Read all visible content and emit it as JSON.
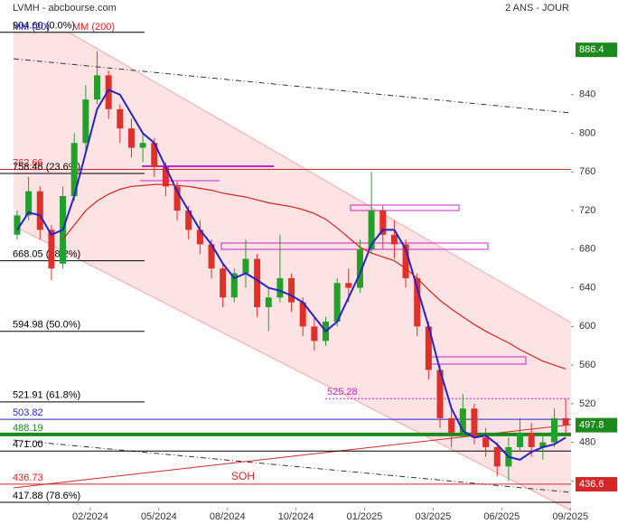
{
  "chart_data": {
    "type": "candlestick",
    "title": "LVMH - abcbourse.com",
    "subtitle": "2 ANS - JOUR",
    "xlim": [
      -2.95,
      22.15
    ],
    "xticks": [
      {
        "value": 1,
        "label": "02/2024"
      },
      {
        "value": 4,
        "label": "05/2024"
      },
      {
        "value": 7,
        "label": "08/2024"
      },
      {
        "value": 10,
        "label": "10/2024"
      },
      {
        "value": 13,
        "label": "01/2025"
      },
      {
        "value": 16,
        "label": "03/2025"
      },
      {
        "value": 19,
        "label": "06/2025"
      },
      {
        "value": 22,
        "label": "09/2025"
      }
    ],
    "ylim": [
      409.5,
      938
    ],
    "yticks": [
      440,
      480,
      520,
      560,
      600,
      640,
      680,
      720,
      760,
      800,
      840
    ],
    "up_color": "#22a02a",
    "down_color": "#e0302a",
    "x": [
      -2.2,
      -1.7,
      -1.2,
      -0.7,
      -0.2,
      0.3,
      0.8,
      1.3,
      1.8,
      2.3,
      2.8,
      3.3,
      3.8,
      4.3,
      4.8,
      5.3,
      5.8,
      6.3,
      6.8,
      7.3,
      7.8,
      8.3,
      8.8,
      9.3,
      9.8,
      10.3,
      10.8,
      11.3,
      11.8,
      12.3,
      12.8,
      13.3,
      13.8,
      14.3,
      14.8,
      15.3,
      15.8,
      16.3,
      16.8,
      17.3,
      17.8,
      18.3,
      18.8,
      19.3,
      19.8,
      20.3,
      20.8,
      21.3,
      21.8
    ],
    "candles": {
      "open": [
        695,
        715,
        740,
        700,
        665,
        735,
        790,
        835,
        860,
        825,
        805,
        785,
        790,
        765,
        745,
        720,
        700,
        685,
        660,
        630,
        655,
        670,
        620,
        630,
        650,
        625,
        600,
        585,
        605,
        645,
        640,
        680,
        720,
        695,
        685,
        650,
        600,
        555,
        505,
        490,
        515,
        485,
        475,
        455,
        475,
        490,
        475,
        480,
        505
      ],
      "high": [
        720,
        755,
        745,
        705,
        745,
        800,
        850,
        885,
        865,
        830,
        815,
        800,
        795,
        770,
        750,
        725,
        710,
        690,
        665,
        660,
        690,
        675,
        640,
        695,
        655,
        630,
        610,
        610,
        650,
        660,
        690,
        760,
        725,
        710,
        690,
        655,
        605,
        560,
        515,
        530,
        520,
        495,
        480,
        485,
        505,
        500,
        490,
        515,
        525
      ],
      "low": [
        690,
        710,
        690,
        648,
        660,
        730,
        780,
        830,
        815,
        790,
        775,
        770,
        755,
        735,
        710,
        690,
        675,
        650,
        620,
        625,
        640,
        610,
        595,
        625,
        615,
        590,
        575,
        580,
        600,
        625,
        635,
        675,
        680,
        670,
        640,
        590,
        545,
        495,
        475,
        485,
        478,
        465,
        445,
        440,
        470,
        465,
        462,
        475,
        490
      ],
      "close": [
        715,
        740,
        700,
        660,
        735,
        790,
        835,
        860,
        825,
        805,
        785,
        790,
        765,
        745,
        720,
        700,
        685,
        660,
        630,
        655,
        670,
        620,
        630,
        650,
        625,
        600,
        585,
        605,
        645,
        640,
        680,
        720,
        695,
        685,
        650,
        600,
        555,
        505,
        490,
        515,
        485,
        475,
        455,
        475,
        490,
        475,
        480,
        505,
        498
      ]
    },
    "series": [
      {
        "name": "MM (20)",
        "color": "#2424c8",
        "values": [
          700,
          718,
          715,
          695,
          700,
          735,
          780,
          825,
          845,
          840,
          820,
          800,
          790,
          765,
          740,
          720,
          700,
          685,
          665,
          650,
          655,
          648,
          640,
          637,
          632,
          625,
          610,
          595,
          605,
          630,
          655,
          685,
          700,
          700,
          680,
          640,
          600,
          555,
          515,
          492,
          485,
          487,
          478,
          465,
          462,
          470,
          475,
          478,
          485
        ]
      },
      {
        "name": "MM (200)",
        "color": "#dd2222",
        "values": [
          null,
          null,
          null,
          null,
          690,
          705,
          720,
          730,
          737,
          742,
          745,
          746,
          747,
          747,
          746,
          745,
          743,
          741,
          738,
          736,
          734,
          731,
          728,
          726,
          724,
          721,
          717,
          711,
          702,
          692,
          682,
          676,
          672,
          668,
          660,
          650,
          638,
          627,
          618,
          610,
          602,
          595,
          589,
          583,
          576,
          570,
          564,
          560,
          556
        ]
      }
    ],
    "levels": [
      {
        "value": 904.6,
        "label": "904.60  (0.0%)",
        "color": "#000000",
        "span": "short"
      },
      {
        "value": 762.66,
        "label": "762.66",
        "color": "#d62728",
        "span": "full"
      },
      {
        "value": 758.46,
        "label": "758.46  (23.6%)",
        "color": "#000000",
        "span": "short"
      },
      {
        "value": 668.05,
        "label": "668.05  (38.2%)",
        "color": "#000000",
        "span": "short"
      },
      {
        "value": 594.98,
        "label": "594.98  (50.0%)",
        "color": "#000000",
        "span": "short"
      },
      {
        "value": 521.91,
        "label": "521.91  (61.8%)",
        "color": "#000000",
        "span": "short"
      },
      {
        "value": 503.82,
        "label": "503.82",
        "color": "#2424c8",
        "span": "full"
      },
      {
        "value": 488.19,
        "label": "488.19",
        "color": "#1a8a1a",
        "span": "thick"
      },
      {
        "value": 471,
        "label": "471.00",
        "color": "#000000",
        "span": "full"
      },
      {
        "value": 436.73,
        "label": "436.73",
        "color": "#d62728",
        "span": "full"
      },
      {
        "value": 417.88,
        "label": "417.88  (78.6%)",
        "color": "#000000",
        "span": "full"
      }
    ],
    "marker_line": {
      "value": 525.28,
      "color": "#cc22cc"
    },
    "annotation": "SOH",
    "price_tags": [
      {
        "value": 886.4,
        "color": "#1a8a1a"
      },
      {
        "value": 497.8,
        "color": "#1a8a1a"
      },
      {
        "value": 436.6,
        "color": "#d62728"
      }
    ]
  }
}
